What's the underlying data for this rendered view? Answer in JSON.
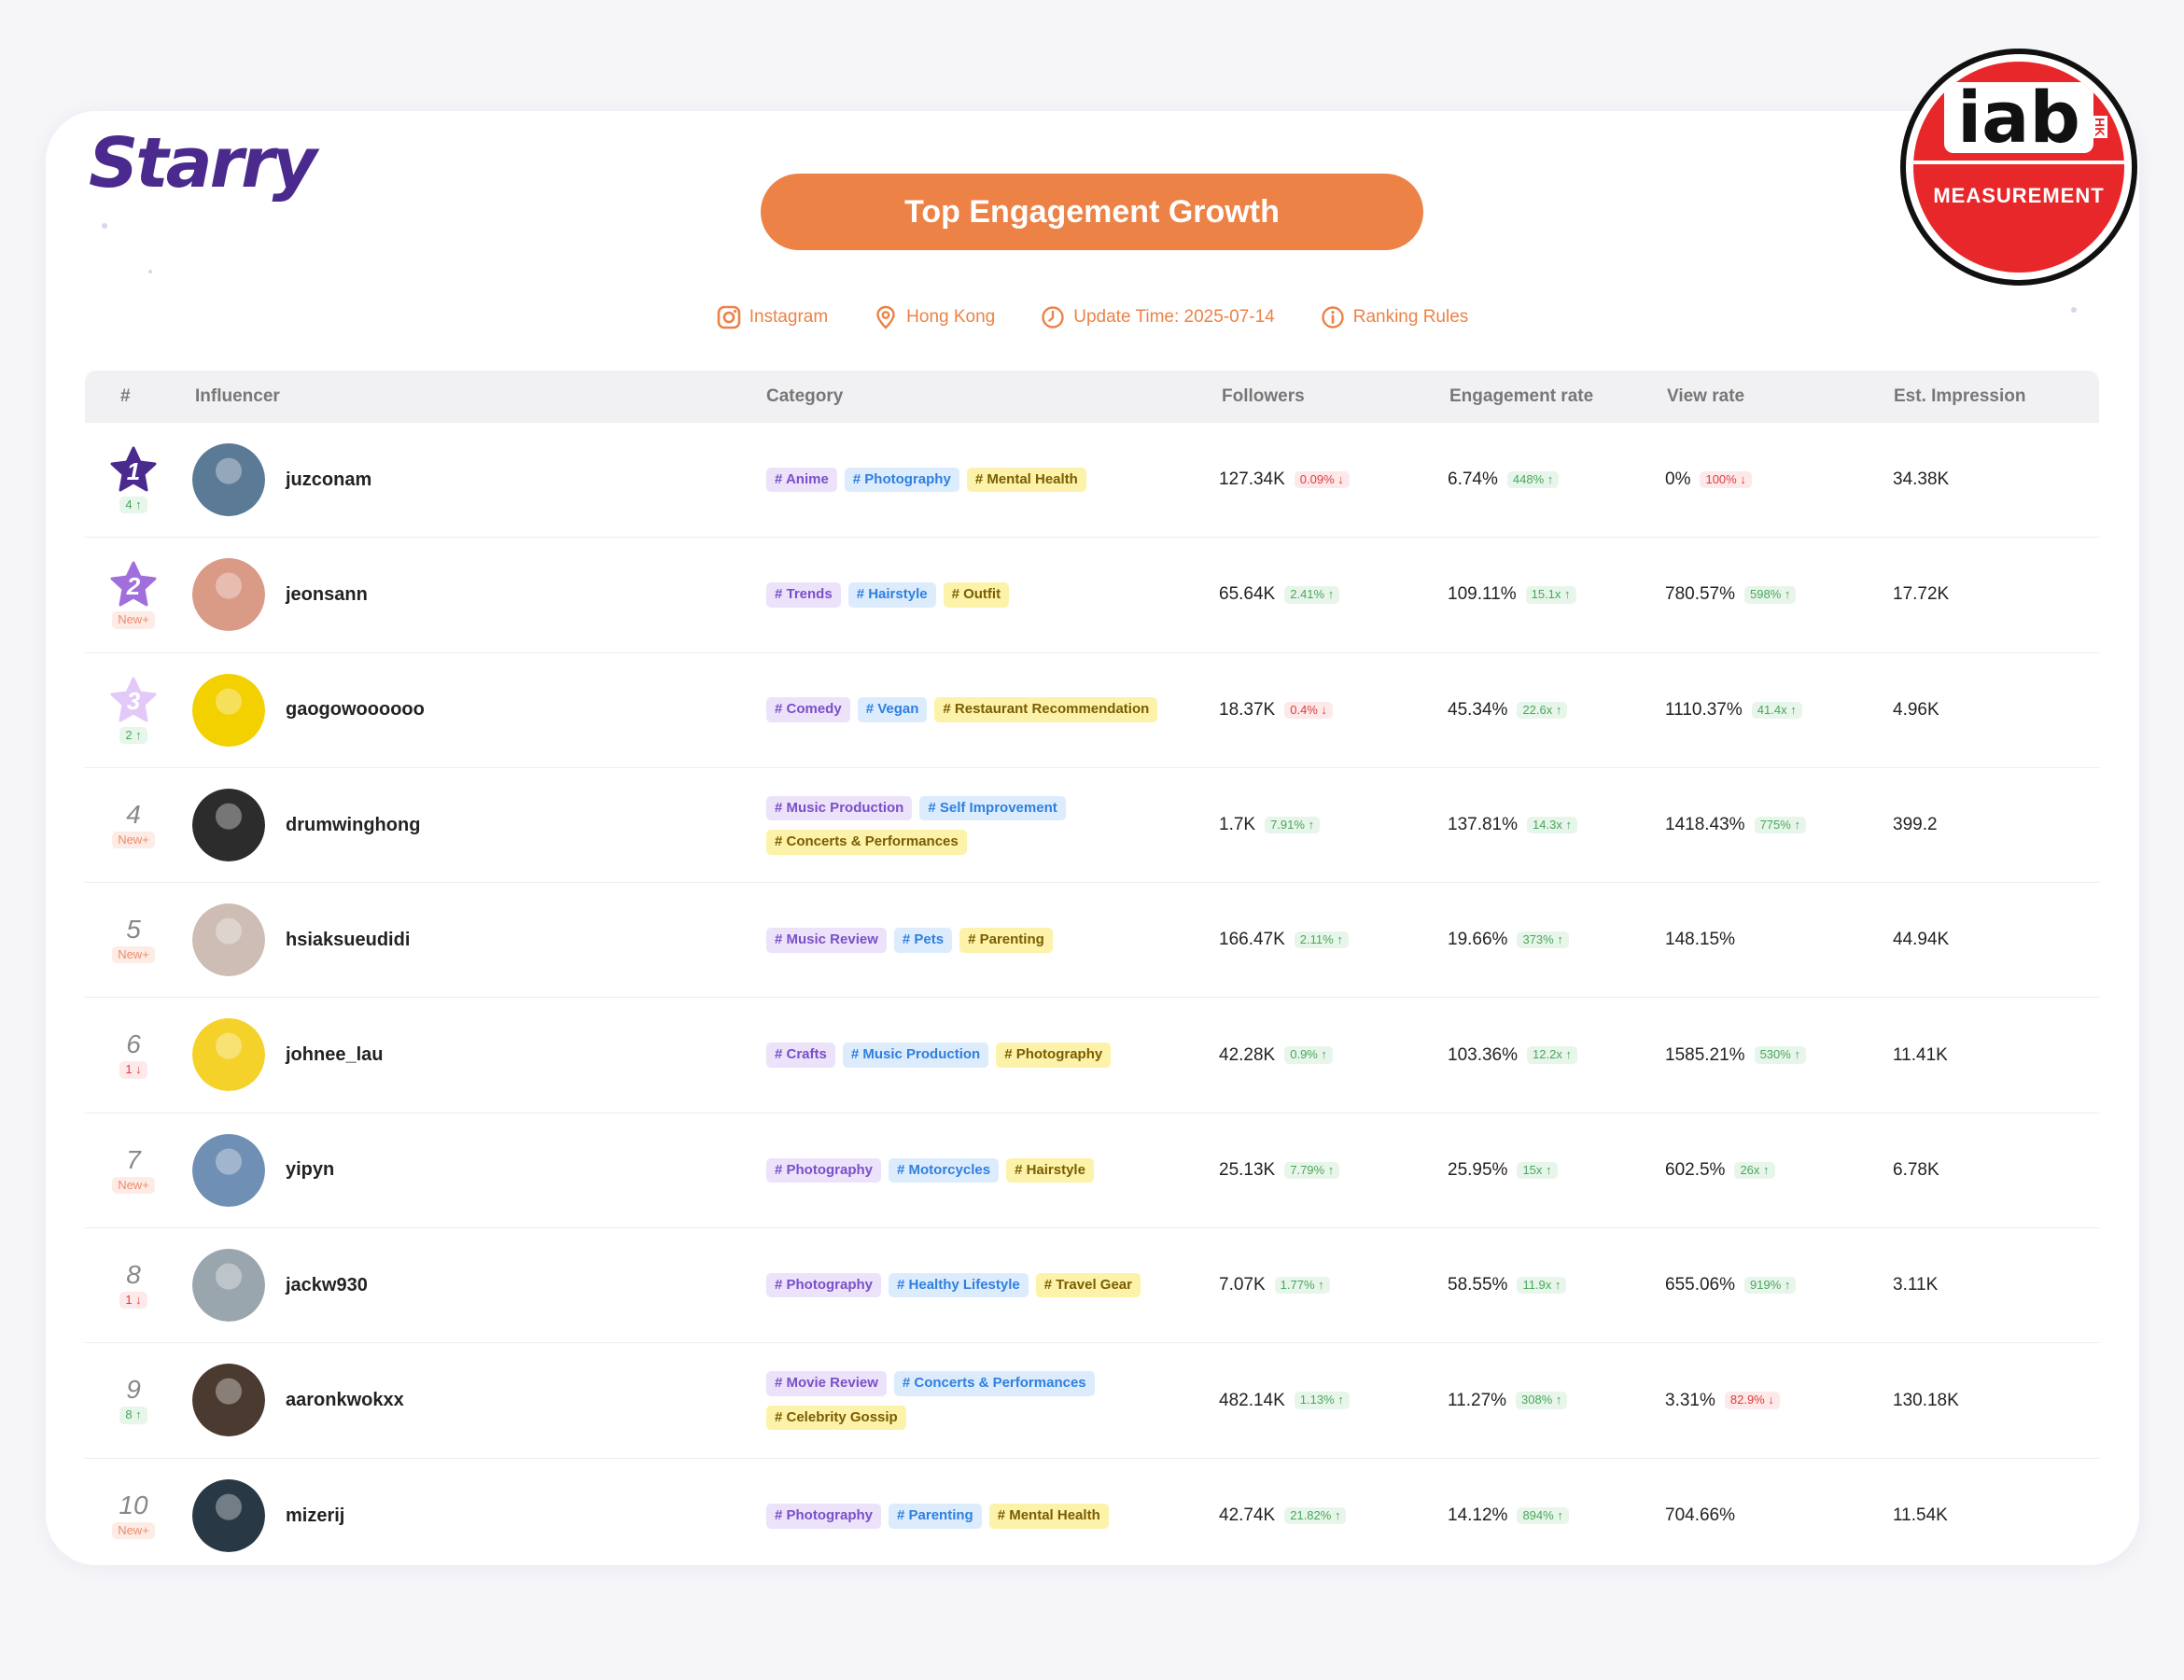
{
  "brand": {
    "logo_text": "Starry"
  },
  "badge": {
    "top_text": "iab",
    "side_text": "HK",
    "bottom_text": "MEASUREMENT"
  },
  "banner": {
    "title": "Top Engagement Growth"
  },
  "meta": {
    "platform": "Instagram",
    "region": "Hong Kong",
    "update_time": "Update Time: 2025-07-14",
    "rules": "Ranking Rules"
  },
  "table": {
    "headers": {
      "rank": "#",
      "influencer": "Influencer",
      "category": "Category",
      "followers": "Followers",
      "engagement": "Engagement rate",
      "view": "View rate",
      "impression": "Est. Impression"
    },
    "rows": [
      {
        "rank": "1",
        "rank_change": "4",
        "rank_change_dir": "up",
        "name": "juzconam",
        "avatar_color": "#5b7a96",
        "tags": [
          {
            "text": "# Anime",
            "color": "purple"
          },
          {
            "text": "# Photography",
            "color": "blue"
          },
          {
            "text": "# Mental Health",
            "color": "yellow"
          }
        ],
        "followers": "127.34K",
        "followers_chg": "0.09%",
        "followers_dir": "down",
        "engagement": "6.74%",
        "engagement_chg": "448%",
        "engagement_dir": "up",
        "view": "0%",
        "view_chg": "100%",
        "view_dir": "down",
        "impression": "34.38K"
      },
      {
        "rank": "2",
        "rank_change": "New",
        "rank_change_dir": "new",
        "name": "jeonsann",
        "avatar_color": "#d99a86",
        "tags": [
          {
            "text": "# Trends",
            "color": "purple"
          },
          {
            "text": "# Hairstyle",
            "color": "blue"
          },
          {
            "text": "# Outfit",
            "color": "yellow"
          }
        ],
        "followers": "65.64K",
        "followers_chg": "2.41%",
        "followers_dir": "up",
        "engagement": "109.11%",
        "engagement_chg": "15.1x",
        "engagement_dir": "up",
        "view": "780.57%",
        "view_chg": "598%",
        "view_dir": "up",
        "impression": "17.72K"
      },
      {
        "rank": "3",
        "rank_change": "2",
        "rank_change_dir": "up",
        "name": "gaogowoooooo",
        "avatar_color": "#f3d000",
        "tags": [
          {
            "text": "# Comedy",
            "color": "purple"
          },
          {
            "text": "# Vegan",
            "color": "blue"
          },
          {
            "text": "# Restaurant Recommendation",
            "color": "yellow"
          }
        ],
        "followers": "18.37K",
        "followers_chg": "0.4%",
        "followers_dir": "down",
        "engagement": "45.34%",
        "engagement_chg": "22.6x",
        "engagement_dir": "up",
        "view": "1110.37%",
        "view_chg": "41.4x",
        "view_dir": "up",
        "impression": "4.96K"
      },
      {
        "rank": "4",
        "rank_change": "New",
        "rank_change_dir": "new",
        "name": "drumwinghong",
        "avatar_color": "#2c2c2c",
        "tags": [
          {
            "text": "# Music Production",
            "color": "purple"
          },
          {
            "text": "# Self Improvement",
            "color": "blue"
          },
          {
            "text": "# Concerts & Performances",
            "color": "yellow"
          }
        ],
        "followers": "1.7K",
        "followers_chg": "7.91%",
        "followers_dir": "up",
        "engagement": "137.81%",
        "engagement_chg": "14.3x",
        "engagement_dir": "up",
        "view": "1418.43%",
        "view_chg": "775%",
        "view_dir": "up",
        "impression": "399.2"
      },
      {
        "rank": "5",
        "rank_change": "New",
        "rank_change_dir": "new",
        "name": "hsiaksueudidi",
        "avatar_color": "#cdbdb4",
        "tags": [
          {
            "text": "# Music Review",
            "color": "purple"
          },
          {
            "text": "# Pets",
            "color": "blue"
          },
          {
            "text": "# Parenting",
            "color": "yellow"
          }
        ],
        "followers": "166.47K",
        "followers_chg": "2.11%",
        "followers_dir": "up",
        "engagement": "19.66%",
        "engagement_chg": "373%",
        "engagement_dir": "up",
        "view": "148.15%",
        "view_chg": "",
        "view_dir": "",
        "impression": "44.94K"
      },
      {
        "rank": "6",
        "rank_change": "1",
        "rank_change_dir": "down",
        "name": "johnee_lau",
        "avatar_color": "#f5d22a",
        "tags": [
          {
            "text": "# Crafts",
            "color": "purple"
          },
          {
            "text": "# Music Production",
            "color": "blue"
          },
          {
            "text": "# Photography",
            "color": "yellow"
          }
        ],
        "followers": "42.28K",
        "followers_chg": "0.9%",
        "followers_dir": "up",
        "engagement": "103.36%",
        "engagement_chg": "12.2x",
        "engagement_dir": "up",
        "view": "1585.21%",
        "view_chg": "530%",
        "view_dir": "up",
        "impression": "11.41K"
      },
      {
        "rank": "7",
        "rank_change": "New",
        "rank_change_dir": "new",
        "name": "yipyn",
        "avatar_color": "#6f8fb4",
        "tags": [
          {
            "text": "# Photography",
            "color": "purple"
          },
          {
            "text": "# Motorcycles",
            "color": "blue"
          },
          {
            "text": "# Hairstyle",
            "color": "yellow"
          }
        ],
        "followers": "25.13K",
        "followers_chg": "7.79%",
        "followers_dir": "up",
        "engagement": "25.95%",
        "engagement_chg": "15x",
        "engagement_dir": "up",
        "view": "602.5%",
        "view_chg": "26x",
        "view_dir": "up",
        "impression": "6.78K"
      },
      {
        "rank": "8",
        "rank_change": "1",
        "rank_change_dir": "down",
        "name": "jackw930",
        "avatar_color": "#9aa6ae",
        "tags": [
          {
            "text": "# Photography",
            "color": "purple"
          },
          {
            "text": "# Healthy Lifestyle",
            "color": "blue"
          },
          {
            "text": "# Travel Gear",
            "color": "yellow"
          }
        ],
        "followers": "7.07K",
        "followers_chg": "1.77%",
        "followers_dir": "up",
        "engagement": "58.55%",
        "engagement_chg": "11.9x",
        "engagement_dir": "up",
        "view": "655.06%",
        "view_chg": "919%",
        "view_dir": "up",
        "impression": "3.11K"
      },
      {
        "rank": "9",
        "rank_change": "8",
        "rank_change_dir": "up",
        "name": "aaronkwokxx",
        "avatar_color": "#4a3a30",
        "tags": [
          {
            "text": "# Movie Review",
            "color": "purple"
          },
          {
            "text": "# Concerts & Performances",
            "color": "blue"
          },
          {
            "text": "# Celebrity Gossip",
            "color": "yellow"
          }
        ],
        "followers": "482.14K",
        "followers_chg": "1.13%",
        "followers_dir": "up",
        "engagement": "11.27%",
        "engagement_chg": "308%",
        "engagement_dir": "up",
        "view": "3.31%",
        "view_chg": "82.9%",
        "view_dir": "down",
        "impression": "130.18K"
      },
      {
        "rank": "10",
        "rank_change": "New",
        "rank_change_dir": "new",
        "name": "mizerij",
        "avatar_color": "#283844",
        "tags": [
          {
            "text": "# Photography",
            "color": "purple"
          },
          {
            "text": "# Parenting",
            "color": "blue"
          },
          {
            "text": "# Mental Health",
            "color": "yellow"
          }
        ],
        "followers": "42.74K",
        "followers_chg": "21.82%",
        "followers_dir": "up",
        "engagement": "14.12%",
        "engagement_chg": "894%",
        "engagement_dir": "up",
        "view": "704.66%",
        "view_chg": "",
        "view_dir": "",
        "impression": "11.54K"
      }
    ]
  },
  "colors": {
    "accent": "#ec8246",
    "brand": "#4a2a8c",
    "rank1": "#4a2a8c",
    "rank2": "#a06fdc",
    "rank3": "#e2c9f8",
    "up": "#48a85a",
    "down": "#e23b3b"
  }
}
